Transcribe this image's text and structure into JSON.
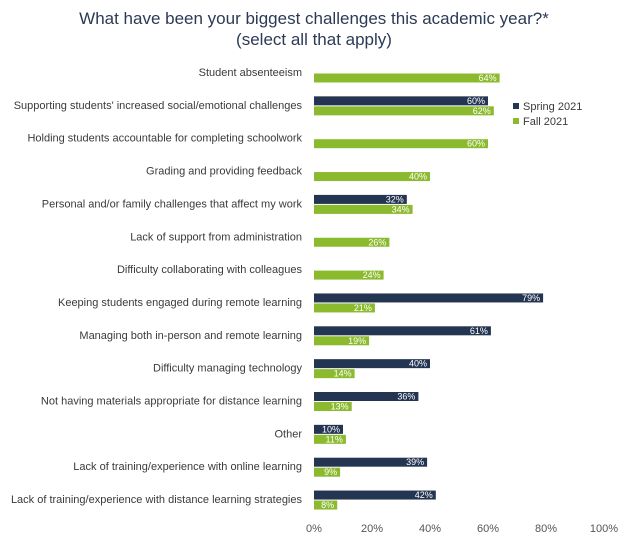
{
  "chart_data": {
    "type": "bar",
    "orientation": "horizontal",
    "title": "What have been your biggest challenges this academic year?*",
    "subtitle": "(select all that apply)",
    "categories": [
      "Student absenteeism",
      "Supporting students' increased social/emotional challenges",
      "Holding students accountable for completing schoolwork",
      "Grading and providing feedback",
      "Personal and/or family challenges that affect my work",
      "Lack of support from administration",
      "Difficulty collaborating with colleagues",
      "Keeping students engaged during remote learning",
      "Managing both in-person and remote learning",
      "Difficulty managing technology",
      "Not having materials appropriate for distance learning",
      "Other",
      "Lack of training/experience with online learning",
      "Lack of training/experience with distance learning strategies"
    ],
    "series": [
      {
        "name": "Spring 2021",
        "color": "#243552",
        "values": [
          null,
          60,
          null,
          null,
          32,
          null,
          null,
          79,
          61,
          40,
          36,
          10,
          39,
          42
        ],
        "labels": [
          "",
          "60%",
          "",
          "",
          "32%",
          "",
          "",
          "79%",
          "61%",
          "40%",
          "36%",
          "10%",
          "39%",
          "42%"
        ]
      },
      {
        "name": "Fall 2021",
        "color": "#8cba2f",
        "values": [
          64,
          62,
          60,
          40,
          34,
          26,
          24,
          21,
          19,
          14,
          13,
          11,
          9,
          8
        ],
        "labels": [
          "64%",
          "62%",
          "60%",
          "40%",
          "34%",
          "26%",
          "24%",
          "21%",
          "19%",
          "14%",
          "13%",
          "11%",
          "9%",
          "8%"
        ]
      }
    ],
    "xlim": [
      0,
      100
    ],
    "xticks": [
      0,
      20,
      40,
      60,
      80,
      100
    ],
    "xtick_labels": [
      "0%",
      "20%",
      "40%",
      "60%",
      "80%",
      "100%"
    ],
    "grid": false,
    "legend_position": "top-right"
  }
}
